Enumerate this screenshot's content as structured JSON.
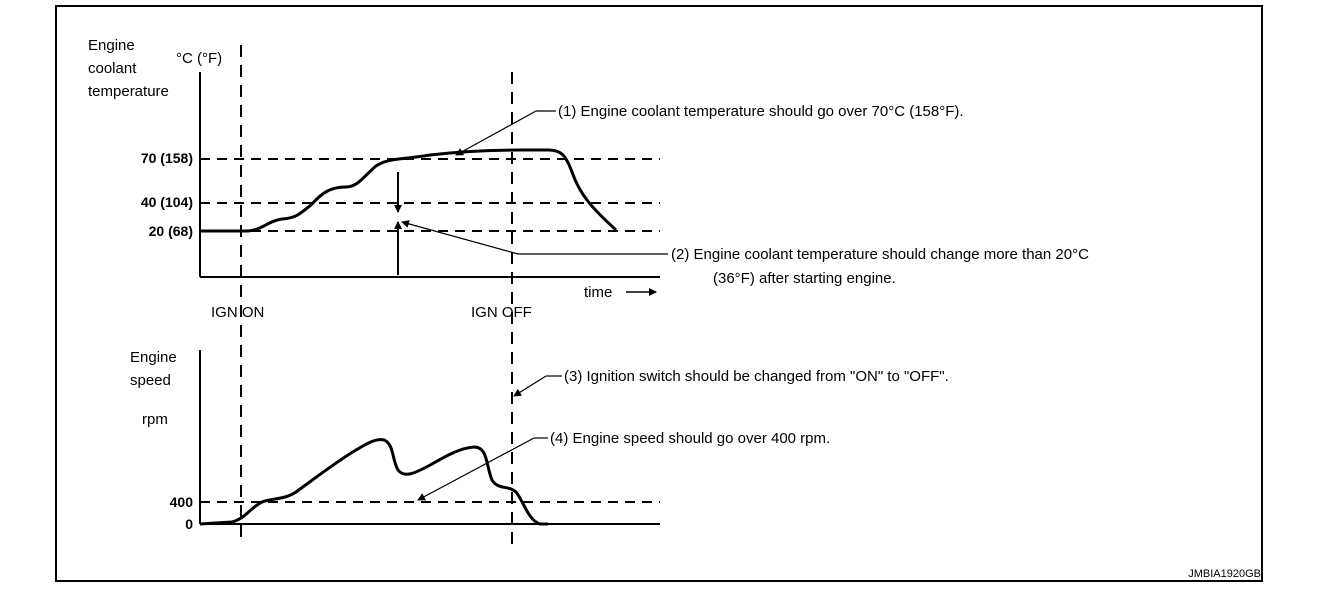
{
  "coolant_chart": {
    "ylabel_lines": [
      "Engine",
      "coolant",
      "temperature"
    ],
    "unit": "°C (°F)",
    "ticks": [
      "70 (158)",
      "40 (104)",
      "20 (68)"
    ],
    "time_label": "time"
  },
  "markers": {
    "ign_on": "IGN ON",
    "ign_off": "IGN OFF"
  },
  "speed_chart": {
    "ylabel_lines": [
      "Engine",
      "speed"
    ],
    "unit": "rpm",
    "ticks": [
      "400",
      "0"
    ]
  },
  "annotations": {
    "a1": "(1)   Engine coolant temperature should go over 70°C (158°F).",
    "a2_line1": "(2)   Engine coolant temperature should change more than 20°C",
    "a2_line2": "(36°F) after starting engine.",
    "a3": "(3)   Ignition switch should be changed from \"ON\" to \"OFF\".",
    "a4": "(4)   Engine speed should go over 400 rpm."
  },
  "figure_code": "JMBIA1920GB"
}
